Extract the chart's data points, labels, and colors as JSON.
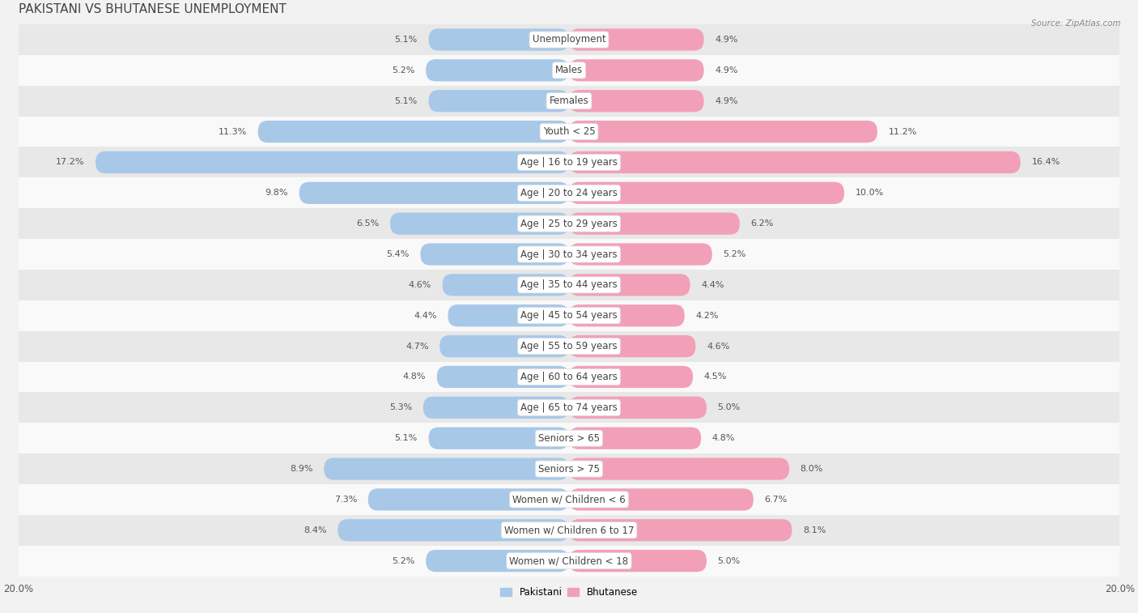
{
  "title": "PAKISTANI VS BHUTANESE UNEMPLOYMENT",
  "source": "Source: ZipAtlas.com",
  "categories": [
    "Unemployment",
    "Males",
    "Females",
    "Youth < 25",
    "Age | 16 to 19 years",
    "Age | 20 to 24 years",
    "Age | 25 to 29 years",
    "Age | 30 to 34 years",
    "Age | 35 to 44 years",
    "Age | 45 to 54 years",
    "Age | 55 to 59 years",
    "Age | 60 to 64 years",
    "Age | 65 to 74 years",
    "Seniors > 65",
    "Seniors > 75",
    "Women w/ Children < 6",
    "Women w/ Children 6 to 17",
    "Women w/ Children < 18"
  ],
  "pakistani": [
    5.1,
    5.2,
    5.1,
    11.3,
    17.2,
    9.8,
    6.5,
    5.4,
    4.6,
    4.4,
    4.7,
    4.8,
    5.3,
    5.1,
    8.9,
    7.3,
    8.4,
    5.2
  ],
  "bhutanese": [
    4.9,
    4.9,
    4.9,
    11.2,
    16.4,
    10.0,
    6.2,
    5.2,
    4.4,
    4.2,
    4.6,
    4.5,
    5.0,
    4.8,
    8.0,
    6.7,
    8.1,
    5.0
  ],
  "pakistani_color": "#a8c8e8",
  "bhutanese_color": "#f2a0b8",
  "axis_max": 20.0,
  "bar_height": 0.72,
  "bg_color": "#f2f2f2",
  "row_bg": "#e8e8e8",
  "row_white": "#f9f9f9",
  "title_fontsize": 11,
  "label_fontsize": 8.5,
  "value_fontsize": 8.0,
  "source_fontsize": 7.5
}
